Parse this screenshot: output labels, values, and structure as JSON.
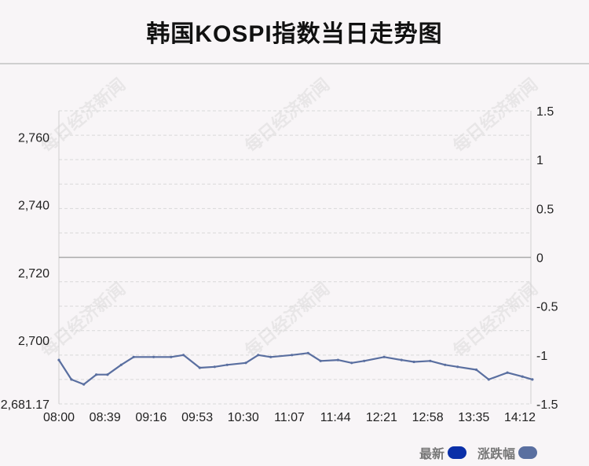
{
  "title": "韩国KOSPI指数当日走势图",
  "watermark": "每日经济新闻",
  "legend": [
    {
      "label": "最新",
      "color": "#0a2fa8"
    },
    {
      "label": "涨跌幅",
      "color": "#5a6fa0"
    }
  ],
  "chart_data": {
    "type": "line",
    "title": "韩国KOSPI指数当日走势图",
    "x_tick_labels": [
      "08:00",
      "08:39",
      "09:16",
      "09:53",
      "10:30",
      "11:07",
      "11:44",
      "12:21",
      "12:58",
      "13:35",
      "14:12"
    ],
    "y_left": {
      "ticks": [
        2681.17,
        2700,
        2720,
        2740,
        2760
      ],
      "tick_labels": [
        "2,681.17",
        "2,700",
        "2,720",
        "2,740",
        "2,760"
      ],
      "range": [
        2681.17,
        2767.77
      ]
    },
    "y_right": {
      "ticks": [
        -1.5,
        -1,
        -0.5,
        0,
        0.5,
        1,
        1.5
      ],
      "tick_labels": [
        "-1.5",
        "-1",
        "-0.5",
        "0",
        "0.5",
        "1",
        "1.5"
      ],
      "range": [
        -1.5,
        1.5
      ]
    },
    "reference_line": 0,
    "grid": true,
    "legend_position": "bottom-right",
    "series": [
      {
        "name": "涨跌幅",
        "color": "#5a6fa0",
        "x": [
          "08:00",
          "08:10",
          "08:20",
          "08:30",
          "08:39",
          "08:50",
          "09:00",
          "09:16",
          "09:30",
          "09:40",
          "09:53",
          "10:05",
          "10:15",
          "10:30",
          "10:40",
          "10:50",
          "11:07",
          "11:20",
          "11:30",
          "11:44",
          "11:55",
          "12:05",
          "12:21",
          "12:35",
          "12:45",
          "12:58",
          "13:10",
          "13:20",
          "13:35",
          "13:45",
          "14:00",
          "14:12",
          "14:20"
        ],
        "values": [
          -1.05,
          -1.25,
          -1.3,
          -1.2,
          -1.2,
          -1.1,
          -1.02,
          -1.02,
          -1.02,
          -1.0,
          -1.13,
          -1.12,
          -1.1,
          -1.08,
          -1.0,
          -1.02,
          -1.0,
          -0.98,
          -1.06,
          -1.05,
          -1.08,
          -1.06,
          -1.02,
          -1.05,
          -1.07,
          -1.06,
          -1.1,
          -1.12,
          -1.15,
          -1.25,
          -1.18,
          -1.22,
          -1.25
        ]
      }
    ]
  }
}
